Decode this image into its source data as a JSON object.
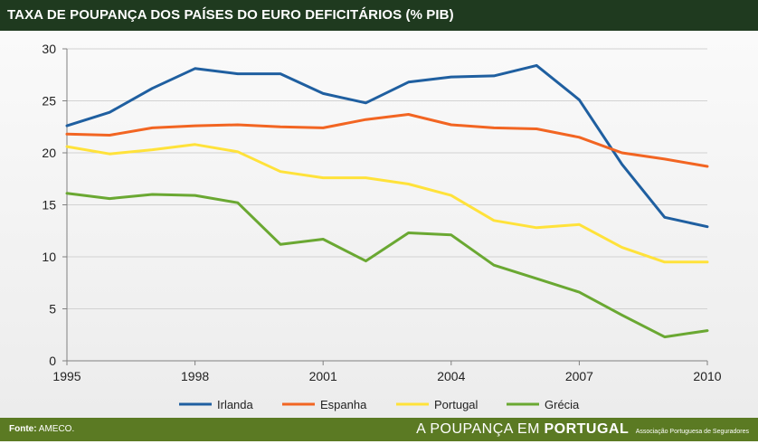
{
  "header": {
    "title": "TAXA DE POUPANÇA DOS PAÍSES DO EURO DEFICITÁRIOS (% PIB)"
  },
  "footer": {
    "source_label": "Fonte:",
    "source_value": "AMECO.",
    "brand_light": "A POUPANÇA EM",
    "brand_bold": "PORTUGAL",
    "brand_assoc": "Associação Portuguesa de Seguradores"
  },
  "chart_data": {
    "type": "line",
    "title": "TAXA DE POUPANÇA DOS PAÍSES DO EURO DEFICITÁRIOS (% PIB)",
    "xlabel": "",
    "ylabel": "",
    "x": [
      1995,
      1996,
      1997,
      1998,
      1999,
      2000,
      2001,
      2002,
      2003,
      2004,
      2005,
      2006,
      2007,
      2008,
      2009,
      2010
    ],
    "x_ticks": [
      "1995",
      "1998",
      "2001",
      "2004",
      "2007",
      "2010"
    ],
    "y_ticks": [
      "0",
      "5",
      "10",
      "15",
      "20",
      "25",
      "30"
    ],
    "xlim": [
      1995,
      2010
    ],
    "ylim": [
      0,
      30
    ],
    "grid": "horizontal",
    "legend_position": "bottom",
    "series": [
      {
        "name": "Irlanda",
        "color": "#1f5fa0",
        "values": [
          22.6,
          23.9,
          26.2,
          28.1,
          27.6,
          27.6,
          25.7,
          24.8,
          26.8,
          27.3,
          27.4,
          28.4,
          25.1,
          18.9,
          13.8,
          12.9
        ]
      },
      {
        "name": "Espanha",
        "color": "#f26522",
        "values": [
          21.8,
          21.7,
          22.4,
          22.6,
          22.7,
          22.5,
          22.4,
          23.2,
          23.7,
          22.7,
          22.4,
          22.3,
          21.5,
          20.0,
          19.4,
          18.7
        ]
      },
      {
        "name": "Portugal",
        "color": "#ffe23a",
        "values": [
          20.6,
          19.9,
          20.3,
          20.8,
          20.1,
          18.2,
          17.6,
          17.6,
          17.0,
          15.9,
          13.5,
          12.8,
          13.1,
          10.9,
          9.5,
          9.5
        ]
      },
      {
        "name": "Grécia",
        "color": "#6aa832",
        "values": [
          16.1,
          15.6,
          16.0,
          15.9,
          15.2,
          11.2,
          11.7,
          9.6,
          12.3,
          12.1,
          9.2,
          7.9,
          6.6,
          4.4,
          2.3,
          2.9
        ]
      }
    ]
  }
}
